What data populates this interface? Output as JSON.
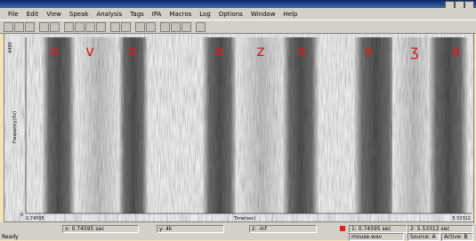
{
  "window": {
    "menu": [
      "File",
      "Edit",
      "View",
      "Speak",
      "Analysis",
      "Tags",
      "IPA",
      "Macros",
      "Log",
      "Options",
      "Window",
      "Help"
    ]
  },
  "spectrogram": {
    "y_axis_label": "Frequency(Hz)",
    "y_top": "4400",
    "y_bottom": "0",
    "x_start": "0.74595",
    "x_label": "Time(sec)",
    "x_end": "5.53312",
    "segments": [
      "a",
      "v",
      "a",
      "a",
      "z",
      "a",
      "a",
      "ʒ",
      "a"
    ]
  },
  "status": {
    "x": "x: 0.74595 sec",
    "y": "y: 4k",
    "z": "z: -inf",
    "cursor1": "1: 0.74595 sec",
    "cursor2": "2: 5.53312 sec",
    "file": "mouse.wav",
    "source": "Source: A",
    "active": "Active: B",
    "ready": "Ready"
  }
}
